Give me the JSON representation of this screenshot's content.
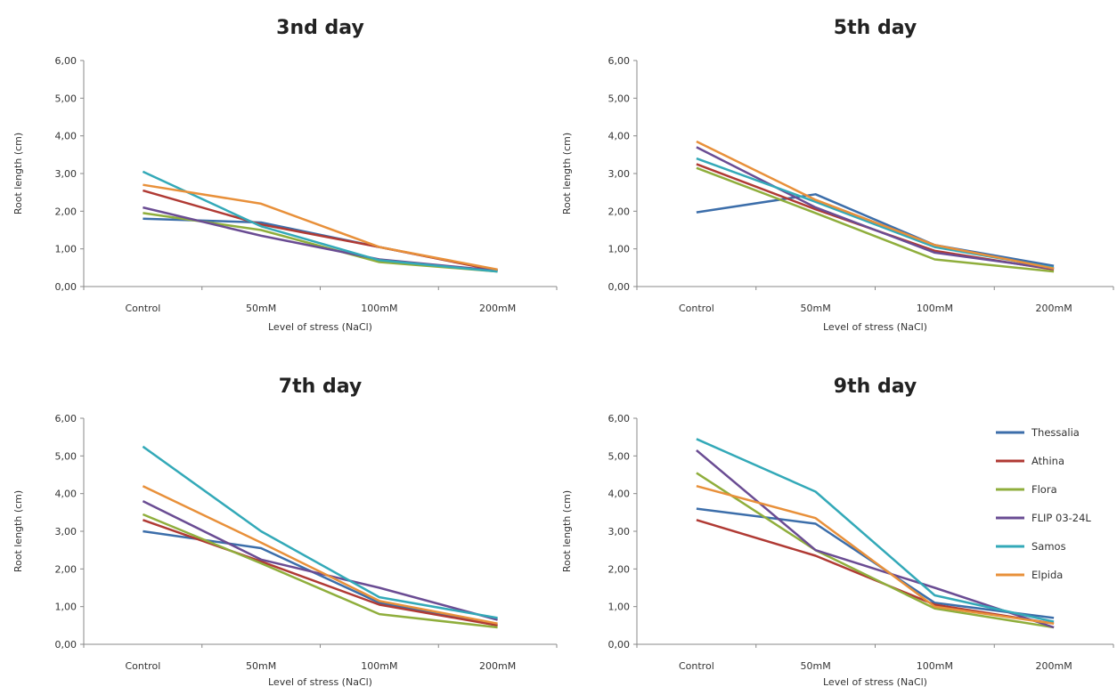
{
  "colors": {
    "Thessalia": "#3c6eaa",
    "Athina": "#b03a34",
    "Flora": "#8fae3c",
    "FLIP 03-24L": "#6a4c93",
    "Samos": "#33a9b8",
    "Elpida": "#e8903a"
  },
  "legend": {
    "placement": "right of 9th day chart",
    "entries": [
      "Thessalia",
      "Athina",
      "Flora",
      "FLIP 03-24L",
      "Samos",
      "Elpida"
    ]
  },
  "chart_data": [
    {
      "type": "line",
      "title": "3nd day",
      "xlabel": "Level of stress (NaCl)",
      "ylabel": "Root length (cm)",
      "ylim": [
        0,
        6
      ],
      "yticks": [
        "0,00",
        "1,00",
        "2,00",
        "3,00",
        "4,00",
        "5,00",
        "6,00"
      ],
      "categories": [
        "Control",
        "50mM",
        "100mM",
        "200mM"
      ],
      "series": [
        {
          "name": "Thessalia",
          "values": [
            1.8,
            1.7,
            1.05,
            0.43
          ]
        },
        {
          "name": "Athina",
          "values": [
            2.55,
            1.65,
            1.05,
            0.42
          ]
        },
        {
          "name": "Flora",
          "values": [
            1.95,
            1.5,
            0.65,
            0.4
          ]
        },
        {
          "name": "FLIP 03-24L",
          "values": [
            2.1,
            1.35,
            0.72,
            0.42
          ]
        },
        {
          "name": "Samos",
          "values": [
            3.05,
            1.6,
            0.7,
            0.4
          ]
        },
        {
          "name": "Elpida",
          "values": [
            2.7,
            2.2,
            1.05,
            0.45
          ]
        }
      ]
    },
    {
      "type": "line",
      "title": "5th day",
      "xlabel": "Level of stress (NaCl)",
      "ylabel": "Root length (cm)",
      "ylim": [
        0,
        6
      ],
      "yticks": [
        "0,00",
        "1,00",
        "2,00",
        "3,00",
        "4,00",
        "5,00",
        "6,00"
      ],
      "categories": [
        "Control",
        "50mM",
        "100mM",
        "200mM"
      ],
      "series": [
        {
          "name": "Thessalia",
          "values": [
            1.97,
            2.45,
            1.1,
            0.55
          ]
        },
        {
          "name": "Athina",
          "values": [
            3.25,
            2.05,
            0.95,
            0.45
          ]
        },
        {
          "name": "Flora",
          "values": [
            3.15,
            1.95,
            0.72,
            0.4
          ]
        },
        {
          "name": "FLIP 03-24L",
          "values": [
            3.7,
            2.1,
            0.9,
            0.47
          ]
        },
        {
          "name": "Samos",
          "values": [
            3.4,
            2.25,
            1.05,
            0.5
          ]
        },
        {
          "name": "Elpida",
          "values": [
            3.85,
            2.3,
            1.1,
            0.48
          ]
        }
      ]
    },
    {
      "type": "line",
      "title": "7th day",
      "xlabel": "Level of stress (NaCl)",
      "ylabel": "Root length (cm)",
      "ylim": [
        0,
        6
      ],
      "yticks": [
        "0,00",
        "1,00",
        "2,00",
        "3,00",
        "4,00",
        "5,00",
        "6,00"
      ],
      "categories": [
        "Control",
        "50mM",
        "100mM",
        "200mM"
      ],
      "series": [
        {
          "name": "Thessalia",
          "values": [
            3.0,
            2.55,
            1.1,
            0.5
          ]
        },
        {
          "name": "Athina",
          "values": [
            3.3,
            2.2,
            1.05,
            0.5
          ]
        },
        {
          "name": "Flora",
          "values": [
            3.45,
            2.15,
            0.8,
            0.45
          ]
        },
        {
          "name": "FLIP 03-24L",
          "values": [
            3.8,
            2.25,
            1.5,
            0.65
          ]
        },
        {
          "name": "Samos",
          "values": [
            5.25,
            3.0,
            1.25,
            0.7
          ]
        },
        {
          "name": "Elpida",
          "values": [
            4.2,
            2.7,
            1.15,
            0.55
          ]
        }
      ]
    },
    {
      "type": "line",
      "title": "9th day",
      "xlabel": "Level of stress (NaCl)",
      "ylabel": "Root length (cm)",
      "ylim": [
        0,
        6
      ],
      "yticks": [
        "0,00",
        "1,00",
        "2,00",
        "3,00",
        "4,00",
        "5,00",
        "6,00"
      ],
      "categories": [
        "Control",
        "50mM",
        "100mM",
        "200mM"
      ],
      "series": [
        {
          "name": "Thessalia",
          "values": [
            3.6,
            3.2,
            1.1,
            0.7
          ]
        },
        {
          "name": "Athina",
          "values": [
            3.3,
            2.35,
            1.05,
            0.55
          ]
        },
        {
          "name": "Flora",
          "values": [
            4.55,
            2.5,
            0.95,
            0.45
          ]
        },
        {
          "name": "FLIP 03-24L",
          "values": [
            5.15,
            2.5,
            1.5,
            0.45
          ]
        },
        {
          "name": "Samos",
          "values": [
            5.45,
            4.05,
            1.3,
            0.6
          ]
        },
        {
          "name": "Elpida",
          "values": [
            4.2,
            3.35,
            1.0,
            0.55
          ]
        }
      ]
    }
  ]
}
